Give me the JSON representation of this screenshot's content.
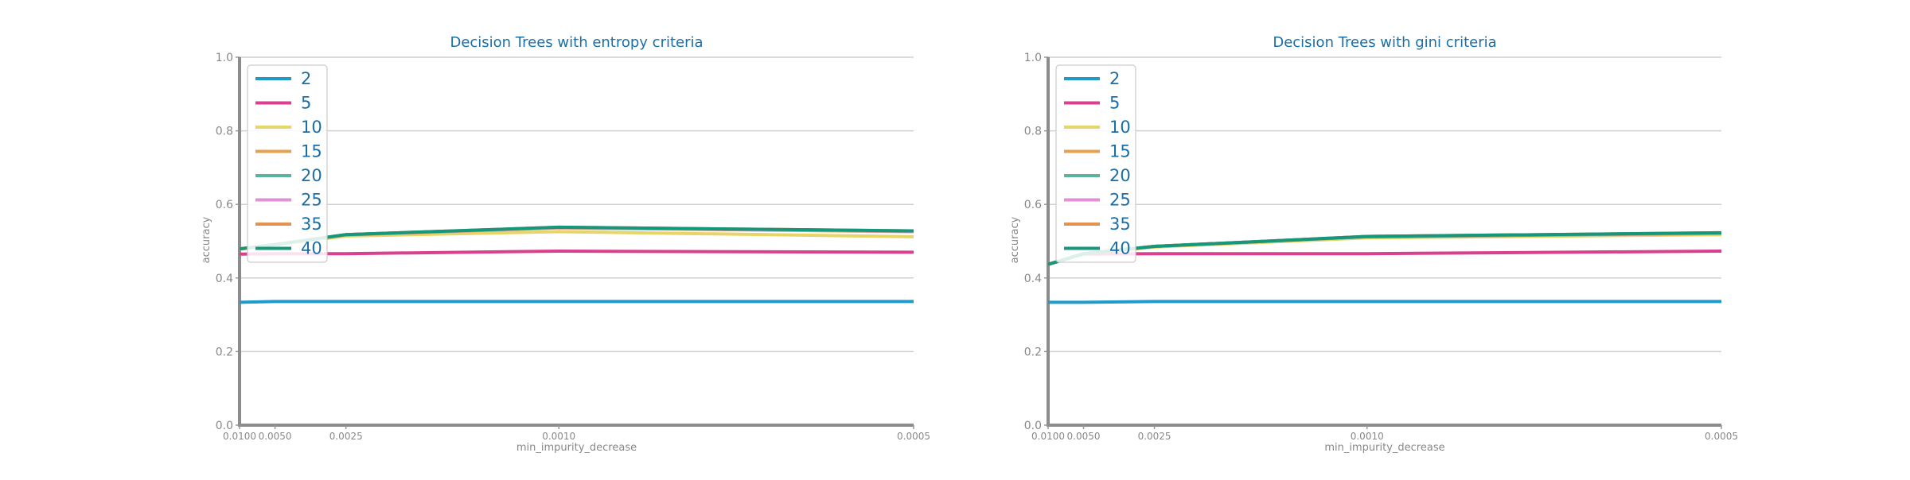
{
  "chart_data": [
    {
      "type": "line",
      "title": "Decision Trees with entropy criteria",
      "xlabel": "min_impurity_decrease",
      "ylabel": "accuracy",
      "x": [
        0.01,
        0.005,
        0.0025,
        0.001,
        0.0005
      ],
      "x_tick_labels": [
        "0.0100",
        "0.0050",
        "0.0025",
        "0.0010",
        "0.0005"
      ],
      "y_ticks": [
        "0.0",
        "0.2",
        "0.4",
        "0.6",
        "0.8",
        "1.0"
      ],
      "ylim": [
        0,
        1
      ],
      "x_scale": "reciprocal (1/x)",
      "grid": "horizontal",
      "legend_position": "top-left",
      "series": [
        {
          "name": "2",
          "color": "#1f9ac9",
          "values": [
            0.334,
            0.336,
            0.336,
            0.336,
            0.336
          ]
        },
        {
          "name": "5",
          "color": "#d9408e",
          "values": [
            0.465,
            0.466,
            0.466,
            0.473,
            0.47
          ]
        },
        {
          "name": "10",
          "color": "#e8d56a",
          "values": [
            0.478,
            0.49,
            0.514,
            0.526,
            0.512
          ]
        },
        {
          "name": "15",
          "color": "#e8a04c",
          "values": [
            0.479,
            0.491,
            0.517,
            0.536,
            0.526
          ]
        },
        {
          "name": "20",
          "color": "#5bb39e",
          "values": [
            0.479,
            0.491,
            0.518,
            0.537,
            0.527
          ]
        },
        {
          "name": "25",
          "color": "#de92d3",
          "values": [
            0.479,
            0.491,
            0.518,
            0.537,
            0.527
          ]
        },
        {
          "name": "35",
          "color": "#e4924f",
          "values": [
            0.479,
            0.491,
            0.518,
            0.538,
            0.528
          ]
        },
        {
          "name": "40",
          "color": "#14977b",
          "values": [
            0.479,
            0.491,
            0.518,
            0.538,
            0.528
          ]
        }
      ]
    },
    {
      "type": "line",
      "title": "Decision Trees with gini criteria",
      "xlabel": "min_impurity_decrease",
      "ylabel": "accuracy",
      "x": [
        0.01,
        0.005,
        0.0025,
        0.001,
        0.0005
      ],
      "x_tick_labels": [
        "0.0100",
        "0.0050",
        "0.0025",
        "0.0010",
        "0.0005"
      ],
      "y_ticks": [
        "0.0",
        "0.2",
        "0.4",
        "0.6",
        "0.8",
        "1.0"
      ],
      "ylim": [
        0,
        1
      ],
      "x_scale": "reciprocal (1/x)",
      "grid": "horizontal",
      "legend_position": "top-left",
      "series": [
        {
          "name": "2",
          "color": "#1f9ac9",
          "values": [
            0.334,
            0.334,
            0.336,
            0.336,
            0.336
          ]
        },
        {
          "name": "5",
          "color": "#d9408e",
          "values": [
            0.437,
            0.465,
            0.466,
            0.466,
            0.473
          ]
        },
        {
          "name": "10",
          "color": "#e8d56a",
          "values": [
            0.437,
            0.466,
            0.484,
            0.509,
            0.518
          ]
        },
        {
          "name": "15",
          "color": "#e8a04c",
          "values": [
            0.437,
            0.466,
            0.486,
            0.512,
            0.521
          ]
        },
        {
          "name": "20",
          "color": "#5bb39e",
          "values": [
            0.437,
            0.466,
            0.486,
            0.512,
            0.522
          ]
        },
        {
          "name": "25",
          "color": "#de92d3",
          "values": [
            0.437,
            0.466,
            0.486,
            0.513,
            0.522
          ]
        },
        {
          "name": "35",
          "color": "#e4924f",
          "values": [
            0.437,
            0.466,
            0.486,
            0.513,
            0.523
          ]
        },
        {
          "name": "40",
          "color": "#14977b",
          "values": [
            0.437,
            0.466,
            0.486,
            0.513,
            0.523
          ]
        }
      ]
    }
  ]
}
